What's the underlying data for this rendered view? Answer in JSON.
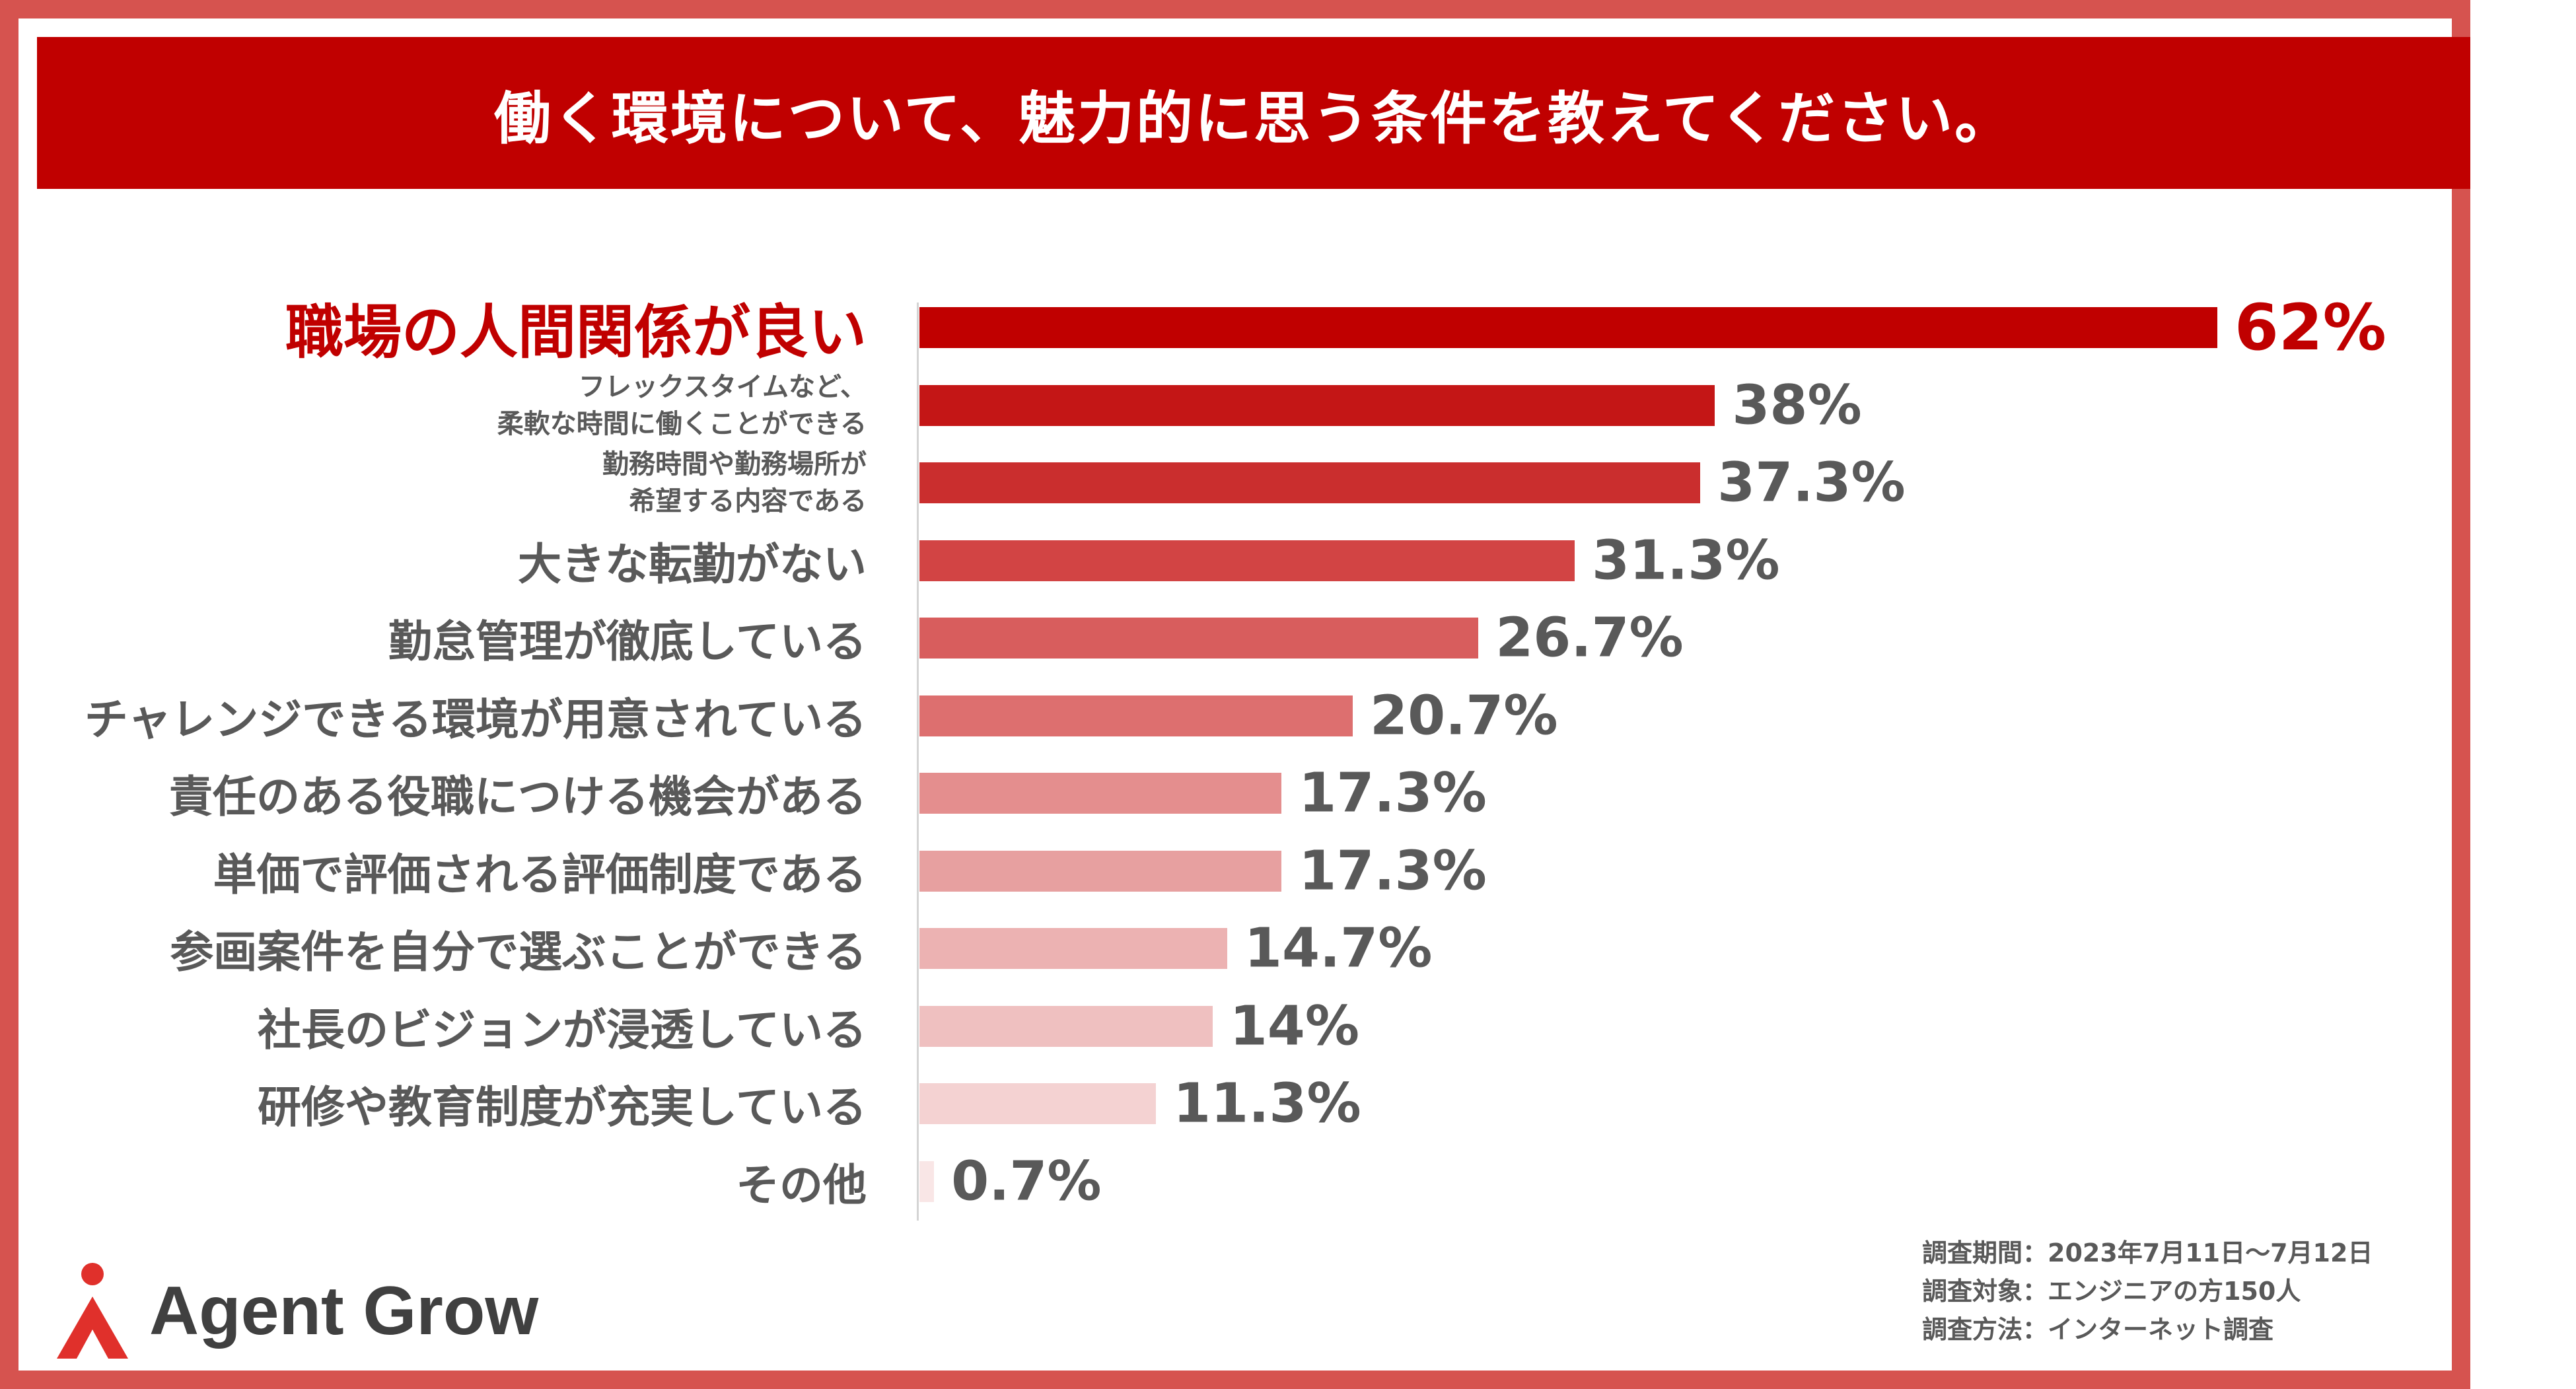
{
  "title": "働く環境について、魅力的に思う条件を教えてください。",
  "chart_data": {
    "type": "bar",
    "orientation": "horizontal",
    "categories": [
      "職場の人間関係が良い",
      "フレックスタイムなど、柔軟な時間に働くことができる",
      "勤務時間や勤務場所が希望する内容である",
      "大きな転勤がない",
      "勤怠管理が徹底している",
      "チャレンジできる環境が用意されている",
      "責任のある役職につける機会がある",
      "単価で評価される評価制度である",
      "参画案件を自分で選ぶことができる",
      "社長のビジョンが浸透している",
      "研修や教育制度が充実している",
      "その他"
    ],
    "label_lines": [
      [
        "職場の人間関係が良い"
      ],
      [
        "フレックスタイムなど、",
        "柔軟な時間に働くことができる"
      ],
      [
        "勤務時間や勤務場所が",
        "希望する内容である"
      ],
      [
        "大きな転勤がない"
      ],
      [
        "勤怠管理が徹底している"
      ],
      [
        "チャレンジできる環境が用意されている"
      ],
      [
        "責任のある役職につける機会がある"
      ],
      [
        "単価で評価される評価制度である"
      ],
      [
        "参画案件を自分で選ぶことができる"
      ],
      [
        "社長のビジョンが浸透している"
      ],
      [
        "研修や教育制度が充実している"
      ],
      [
        "その他"
      ]
    ],
    "values": [
      62,
      38,
      37.3,
      31.3,
      26.7,
      20.7,
      17.3,
      17.3,
      14.7,
      14,
      11.3,
      0.7
    ],
    "value_labels": [
      "62%",
      "38%",
      "37.3%",
      "31.3%",
      "26.7%",
      "20.7%",
      "17.3%",
      "17.3%",
      "14.7%",
      "14%",
      "11.3%",
      "0.7%"
    ],
    "colors": [
      "#c00000",
      "#c41616",
      "#ca2e2e",
      "#d24444",
      "#d85d5d",
      "#dd6f6f",
      "#e48e8e",
      "#e7a0a0",
      "#ecb2b2",
      "#efc0c0",
      "#f4d2d2",
      "#f9e6e6"
    ],
    "highlight_color": "#c00000",
    "xlim": [
      0,
      65
    ]
  },
  "footnote": {
    "period": "調査期間：2023年7月11日〜7月12日",
    "target": "調査対象：エンジニアの方150人",
    "method": "調査方法：インターネット調査"
  },
  "logo": {
    "text": "Agent Grow",
    "icon": "agent-grow-logo-icon",
    "accent_color": "#e0302b"
  }
}
